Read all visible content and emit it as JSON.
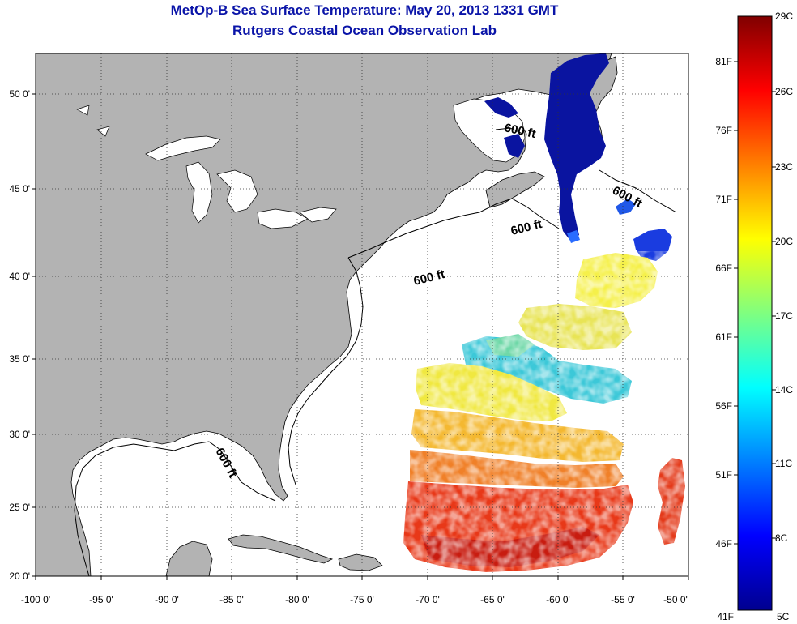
{
  "title": {
    "line1": "MetOp-B Sea Surface Temperature:  May 20, 2013 1331 GMT",
    "line2": "Rutgers Coastal Ocean Observation Lab"
  },
  "map": {
    "lon_range": [
      -100,
      -50
    ],
    "lat_range": [
      20,
      52.5
    ],
    "x_ticks": [
      "-100 0'",
      "-95 0'",
      "-90 0'",
      "-85 0'",
      "-80 0'",
      "-75 0'",
      "-70 0'",
      "-65 0'",
      "-60 0'",
      "-55 0'",
      "-50 0'"
    ],
    "y_ticks": [
      "20 0'",
      "25 0'",
      "30 0'",
      "35 0'",
      "40 0'",
      "45 0'",
      "50 0'"
    ],
    "gridlines": "dotted",
    "contour_labels": [
      "600 ft",
      "600 ft",
      "600 ft",
      "600 ft",
      "600 ft"
    ],
    "colors": {
      "land": "#b3b3b3",
      "water": "#ffffff",
      "title": "#0a14a8"
    }
  },
  "colorbar": {
    "celsius_labels": [
      "29C",
      "26C",
      "23C",
      "20C",
      "17C",
      "14C",
      "11C",
      "8C",
      "5C"
    ],
    "fahrenheit_labels": [
      "81F",
      "76F",
      "71F",
      "66F",
      "61F",
      "56F",
      "51F",
      "46F",
      "41F"
    ],
    "range_c": [
      5,
      29
    ],
    "colormap": "jet"
  }
}
